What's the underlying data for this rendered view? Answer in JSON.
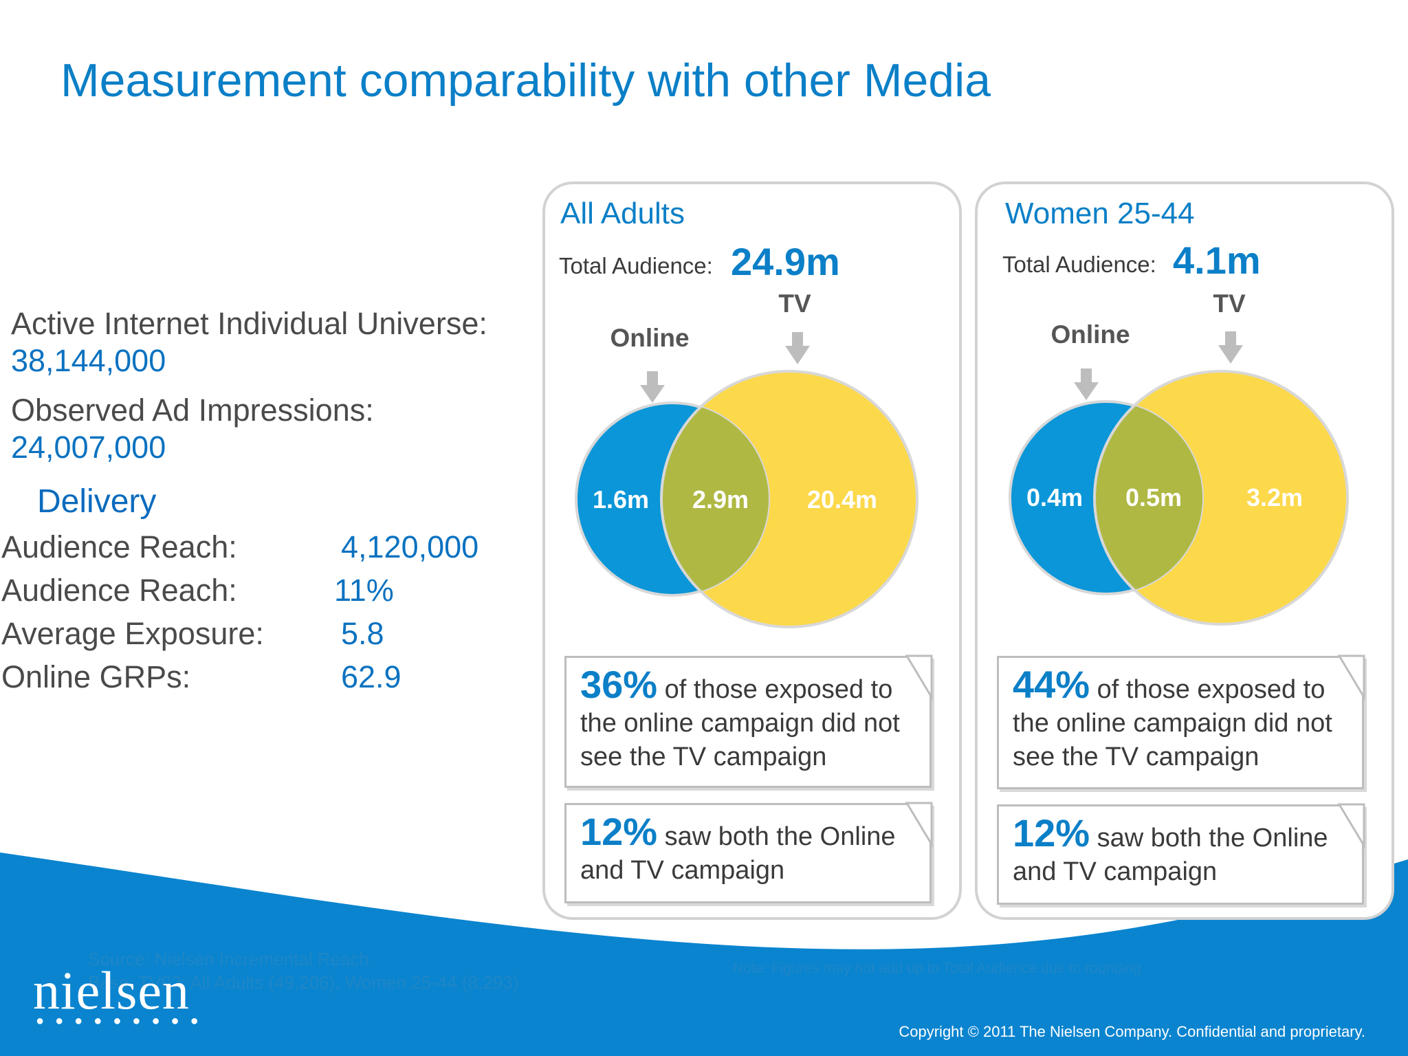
{
  "title": "Measurement comparability with other Media",
  "left": {
    "universe_label": "Active Internet Individual Universe:",
    "universe_value": "38,144,000",
    "impressions_label": "Observed Ad Impressions:",
    "impressions_value": "24,007,000",
    "delivery_heading": "Delivery",
    "rows": [
      {
        "label": "Audience Reach:",
        "value": "4,120,000"
      },
      {
        "label": "Audience Reach:",
        "value": "11%"
      },
      {
        "label": "Average Exposure:",
        "value": "5.8"
      },
      {
        "label": "Online GRPs:",
        "value": "62.9"
      }
    ]
  },
  "panels": [
    {
      "title": "All Adults",
      "total_label": "Total Audience:",
      "total_value": "24.9m",
      "online_label": "Online",
      "tv_label": "TV",
      "online_only": "1.6m",
      "both": "2.9m",
      "tv_only": "20.4m",
      "callout1_pct": "36%",
      "callout1_text": " of those exposed to the online campaign did not see the TV campaign",
      "callout2_pct": "12%",
      "callout2_text": " saw both the Online and TV campaign"
    },
    {
      "title": "Women 25-44",
      "total_label": "Total Audience:",
      "total_value": "4.1m",
      "online_label": "Online",
      "tv_label": "TV",
      "online_only": "0.4m",
      "both": "0.5m",
      "tv_only": "3.2m",
      "callout1_pct": "44%",
      "callout1_text": " of those exposed to the online campaign did not see the TV campaign",
      "callout2_pct": "12%",
      "callout2_text": " saw both the Online and TV campaign"
    }
  ],
  "footer": {
    "source": "Source: Nielsen Incremental Reach",
    "base": "Base: TV02: All Adults (49,206), Women 25-44 (8,293)",
    "note": "Note: Figures may not add up to Total Audience due to rounding",
    "logo": "nielsen",
    "copyright": "Copyright © 2011 The Nielsen Company. Confidential and proprietary."
  },
  "colors": {
    "brand_blue": "#0b7fc7",
    "online_circle": "#0a96d8",
    "tv_circle": "#fcd84b",
    "overlap": "#afb843"
  }
}
